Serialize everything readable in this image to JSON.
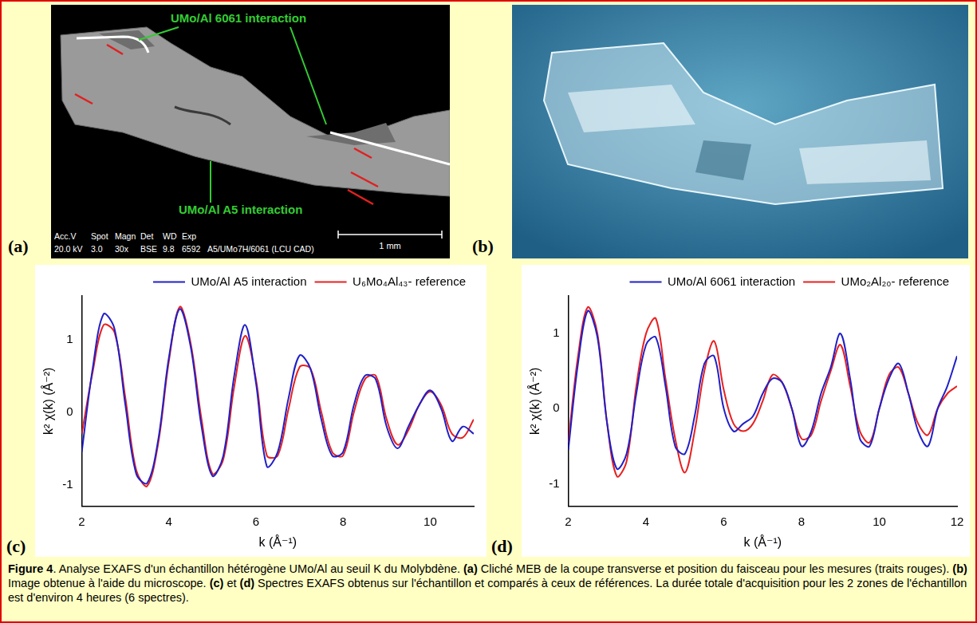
{
  "panels": [
    {
      "letter": "(a)",
      "labels": [
        "UMo/Al 6061  interaction",
        "UMo/Al A5  interaction"
      ],
      "info_headers": [
        "Acc.V",
        "Spot",
        "Magn",
        "Det",
        "WD",
        "Exp"
      ],
      "info_values": [
        "20.0 kV",
        "3.0",
        "30x",
        "BSE",
        "9.8",
        "6592",
        "A5/UMo7H/6061 (LCU CAD)"
      ],
      "scale_bar": "1 mm"
    },
    {
      "letter": "(b)"
    }
  ],
  "chart_letters": [
    "(c)",
    "(d)"
  ],
  "chart_data": [
    {
      "type": "line",
      "x_label": "k (Å⁻¹)",
      "y_label": "k² χ(k) (Å⁻²)",
      "xlim": [
        2,
        11
      ],
      "xticks": [
        2,
        4,
        6,
        8,
        10
      ],
      "ylim": [
        -1.3,
        1.6
      ],
      "yticks": [
        -1,
        0,
        1
      ],
      "grid": false,
      "legend": "top-right",
      "x": [
        2.0,
        2.25,
        2.5,
        2.75,
        3.0,
        3.25,
        3.5,
        3.75,
        4.0,
        4.25,
        4.5,
        4.75,
        5.0,
        5.25,
        5.5,
        5.75,
        6.0,
        6.25,
        6.5,
        6.75,
        7.0,
        7.25,
        7.5,
        7.75,
        8.0,
        8.25,
        8.5,
        8.75,
        9.0,
        9.25,
        9.5,
        9.75,
        10.0,
        10.25,
        10.5,
        10.75,
        11.0
      ],
      "series": [
        {
          "name": "UMo/Al A5 interaction",
          "color": "#2020c8",
          "values": [
            -0.55,
            0.6,
            1.35,
            1.15,
            0.1,
            -0.85,
            -0.98,
            -0.4,
            0.75,
            1.42,
            0.9,
            -0.2,
            -0.88,
            -0.6,
            0.5,
            1.2,
            0.4,
            -0.75,
            -0.55,
            0.2,
            0.78,
            0.6,
            -0.1,
            -0.6,
            -0.55,
            0.1,
            0.5,
            0.45,
            -0.2,
            -0.5,
            -0.2,
            0.1,
            0.3,
            0.05,
            -0.4,
            -0.2,
            -0.3
          ]
        },
        {
          "name": "U₆Mo₄Al₄₃- reference",
          "color": "#e82020",
          "values": [
            -0.3,
            0.55,
            1.2,
            1.1,
            0.2,
            -0.8,
            -1.02,
            -0.45,
            0.7,
            1.45,
            0.95,
            -0.1,
            -0.85,
            -0.65,
            0.35,
            1.05,
            0.45,
            -0.6,
            -0.6,
            0.05,
            0.62,
            0.6,
            0.0,
            -0.55,
            -0.6,
            0.0,
            0.45,
            0.5,
            -0.1,
            -0.45,
            -0.25,
            0.1,
            0.28,
            0.1,
            -0.3,
            -0.35,
            -0.1
          ]
        }
      ]
    },
    {
      "type": "line",
      "x_label": "k (Å⁻¹)",
      "y_label": "k² χ(k) (Å⁻²)",
      "xlim": [
        2,
        12
      ],
      "xticks": [
        2,
        4,
        6,
        8,
        10,
        12
      ],
      "ylim": [
        -1.3,
        1.5
      ],
      "yticks": [
        -1,
        0,
        1
      ],
      "grid": false,
      "legend": "top-right",
      "x": [
        2.0,
        2.25,
        2.5,
        2.75,
        3.0,
        3.25,
        3.5,
        3.75,
        4.0,
        4.25,
        4.5,
        4.75,
        5.0,
        5.25,
        5.5,
        5.75,
        6.0,
        6.25,
        6.5,
        6.75,
        7.0,
        7.25,
        7.5,
        7.75,
        8.0,
        8.25,
        8.5,
        8.75,
        9.0,
        9.25,
        9.5,
        9.75,
        10.0,
        10.25,
        10.5,
        10.75,
        11.0,
        11.25,
        11.5,
        11.75,
        12.0
      ],
      "series": [
        {
          "name": "UMo/Al 6061 interaction",
          "color": "#2020c8",
          "values": [
            -0.55,
            0.6,
            1.3,
            0.95,
            -0.2,
            -0.8,
            -0.6,
            0.2,
            0.85,
            0.95,
            0.3,
            -0.5,
            -0.6,
            -0.1,
            0.6,
            0.7,
            0.0,
            -0.3,
            -0.2,
            -0.1,
            0.2,
            0.4,
            0.35,
            0.0,
            -0.5,
            -0.3,
            0.2,
            0.55,
            1.0,
            0.4,
            -0.4,
            -0.5,
            0.0,
            0.4,
            0.6,
            0.2,
            -0.3,
            -0.5,
            0.0,
            0.3,
            0.7
          ]
        },
        {
          "name": "UMo₂Al₂₀- reference",
          "color": "#e82020",
          "values": [
            -0.45,
            0.7,
            1.35,
            1.0,
            -0.2,
            -0.9,
            -0.7,
            0.3,
            1.0,
            1.2,
            0.4,
            -0.4,
            -0.85,
            -0.3,
            0.5,
            0.9,
            0.25,
            -0.2,
            -0.3,
            -0.2,
            0.1,
            0.45,
            0.35,
            0.0,
            -0.4,
            -0.35,
            0.1,
            0.5,
            0.85,
            0.3,
            -0.3,
            -0.45,
            0.0,
            0.45,
            0.55,
            0.2,
            -0.2,
            -0.35,
            0.0,
            0.2,
            0.3
          ]
        }
      ]
    }
  ],
  "caption": [
    {
      "text": "Figure 4",
      "bold": true
    },
    {
      "text": ". Analyse EXAFS d'un échantillon hétérogène UMo/Al au seuil K du Molybdène. ",
      "bold": false
    },
    {
      "text": "(a)",
      "bold": true
    },
    {
      "text": " Cliché MEB de la coupe transverse et position du faisceau pour les mesures (traits rouges). ",
      "bold": false
    },
    {
      "text": "(b)",
      "bold": true
    },
    {
      "text": " Image obtenue à l'aide du microscope. ",
      "bold": false
    },
    {
      "text": "(c)",
      "bold": true
    },
    {
      "text": " et ",
      "bold": false
    },
    {
      "text": "(d)",
      "bold": true
    },
    {
      "text": " Spectres EXAFS obtenus sur l'échantillon et comparés à ceux de références. La durée totale d'acquisition pour les 2 zones de l'échantillon est d'environ 4 heures (6 spectres).",
      "bold": false
    }
  ]
}
